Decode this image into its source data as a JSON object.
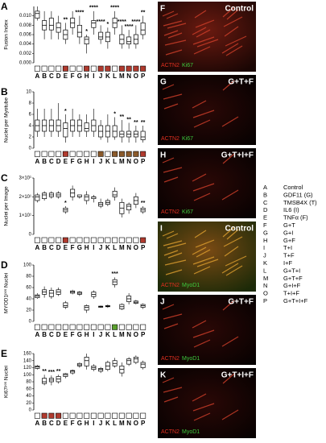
{
  "chart_data": [
    {
      "type": "box",
      "panel_label": "A",
      "ylabel": "Fusion Index",
      "categories": [
        "A",
        "B",
        "C",
        "D",
        "E",
        "F",
        "G",
        "H",
        "I",
        "J",
        "K",
        "L",
        "M",
        "N",
        "O",
        "P"
      ],
      "ylim": [
        0,
        0.012
      ],
      "yticks": [
        {
          "value": 0,
          "label": "0.000"
        },
        {
          "value": 0.002,
          "label": "0.002"
        },
        {
          "value": 0.004,
          "label": "0.004"
        },
        {
          "value": 0.006,
          "label": "0.006"
        },
        {
          "value": 0.008,
          "label": "0.008"
        },
        {
          "value": 0.01,
          "label": "0.010"
        }
      ],
      "boxes": [
        [
          0.009,
          0.0095,
          0.0105,
          0.011,
          0.012
        ],
        [
          0.005,
          0.007,
          0.008,
          0.009,
          0.011
        ],
        [
          0.005,
          0.007,
          0.008,
          0.0095,
          0.011
        ],
        [
          0.005,
          0.0065,
          0.0075,
          0.0085,
          0.01
        ],
        [
          0.004,
          0.005,
          0.006,
          0.007,
          0.0085
        ],
        [
          0.006,
          0.0075,
          0.0085,
          0.0095,
          0.011
        ],
        [
          0.004,
          0.0055,
          0.0065,
          0.008,
          0.01
        ],
        [
          0.002,
          0.004,
          0.005,
          0.0055,
          0.006
        ],
        [
          0.006,
          0.0075,
          0.0085,
          0.009,
          0.011
        ],
        [
          0.004,
          0.005,
          0.0055,
          0.0065,
          0.008
        ],
        [
          0.003,
          0.0045,
          0.0055,
          0.0065,
          0.0075
        ],
        [
          0.006,
          0.0075,
          0.0085,
          0.0095,
          0.011
        ],
        [
          0.003,
          0.004,
          0.005,
          0.006,
          0.008
        ],
        [
          0.003,
          0.004,
          0.0045,
          0.0055,
          0.007
        ],
        [
          0.003,
          0.004,
          0.005,
          0.006,
          0.008
        ],
        [
          0.005,
          0.006,
          0.007,
          0.0085,
          0.01
        ]
      ],
      "annotations": [
        null,
        null,
        null,
        null,
        "**",
        null,
        "****",
        "*",
        "****",
        "****",
        "*",
        "****",
        "****",
        "****",
        "****",
        "**"
      ],
      "marker_colors": [
        "#fff",
        "#fff",
        "#fff",
        "#fff",
        "#b03a2e",
        "#fff",
        "#fff",
        "#b03a2e",
        "#fff",
        "#b03a2e",
        "#b03a2e",
        "#fff",
        "#b03a2e",
        "#b03a2e",
        "#b03a2e",
        "#b03a2e"
      ]
    },
    {
      "type": "box",
      "panel_label": "B",
      "ylabel": "Nuclei per Myotube",
      "categories": [
        "A",
        "B",
        "C",
        "D",
        "E",
        "F",
        "G",
        "H",
        "I",
        "J",
        "K",
        "L",
        "M",
        "N",
        "O",
        "P"
      ],
      "ylim": [
        0,
        10
      ],
      "yticks": [
        0,
        2,
        4,
        6,
        8,
        10
      ],
      "boxes": [
        [
          2,
          3,
          4,
          5,
          7
        ],
        [
          2,
          3,
          4,
          5,
          7
        ],
        [
          2,
          3,
          4,
          5,
          7
        ],
        [
          2,
          3,
          4,
          5,
          8
        ],
        [
          1,
          2,
          3.5,
          4.5,
          6
        ],
        [
          2,
          3,
          4,
          5,
          7
        ],
        [
          2,
          3,
          4,
          5,
          6
        ],
        [
          2,
          3,
          3.5,
          4.5,
          6
        ],
        [
          2,
          3,
          4,
          5,
          7
        ],
        [
          1.5,
          2,
          3,
          4,
          5
        ],
        [
          1,
          2,
          3,
          4,
          6
        ],
        [
          1.5,
          2,
          3,
          4,
          5.5
        ],
        [
          1,
          2,
          2.5,
          3,
          5
        ],
        [
          1,
          2,
          2.5,
          3,
          4.5
        ],
        [
          1,
          2,
          2.5,
          3,
          4
        ],
        [
          1,
          1.5,
          2,
          3,
          4
        ]
      ],
      "annotations": [
        null,
        null,
        null,
        null,
        "*",
        null,
        null,
        null,
        null,
        null,
        null,
        "*",
        "**",
        "**",
        "**",
        "**"
      ],
      "marker_colors": [
        "#fff",
        "#fff",
        "#fff",
        "#fff",
        "#b03a2e",
        "#fff",
        "#fff",
        "#fff",
        "#fff",
        "#8b5a2b",
        "#fff",
        "#8b5a2b",
        "#8b5a2b",
        "#8b5a2b",
        "#8b5a2b",
        "#b03a2e"
      ]
    },
    {
      "type": "box",
      "panel_label": "C",
      "ylabel": "Nuclei per Image",
      "categories": [
        "A",
        "B",
        "C",
        "D",
        "E",
        "F",
        "G",
        "H",
        "I",
        "J",
        "K",
        "L",
        "M",
        "N",
        "O",
        "P"
      ],
      "ylim": [
        0,
        30
      ],
      "yticks": [
        0,
        {
          "value": 10,
          "label": "1×10¹"
        },
        {
          "value": 20,
          "label": "2×10¹"
        },
        {
          "value": 30,
          "label": "3×10¹"
        }
      ],
      "boxes": [
        [
          17,
          18,
          20,
          21,
          22
        ],
        [
          18,
          19,
          21,
          22,
          23
        ],
        [
          19,
          20,
          21,
          22,
          23
        ],
        [
          19,
          20,
          21,
          22,
          23
        ],
        [
          11,
          12,
          13,
          14,
          15
        ],
        [
          18,
          20,
          22,
          24,
          26
        ],
        [
          19,
          20,
          20,
          21,
          21
        ],
        [
          16,
          18,
          20,
          21,
          23
        ],
        [
          17,
          19,
          20,
          20,
          21
        ],
        [
          14,
          15,
          16,
          17,
          19
        ],
        [
          15,
          16,
          17,
          18,
          19
        ],
        [
          18,
          20,
          21,
          23,
          25
        ],
        [
          9,
          11,
          14,
          17,
          19
        ],
        [
          11,
          13,
          15,
          16,
          17
        ],
        [
          14,
          16,
          18,
          20,
          22
        ],
        [
          11,
          12,
          13,
          14,
          15
        ]
      ],
      "annotations": [
        null,
        null,
        null,
        null,
        "*",
        null,
        null,
        null,
        null,
        null,
        null,
        null,
        null,
        null,
        null,
        "**"
      ],
      "marker_colors": [
        "#fff",
        "#fff",
        "#fff",
        "#fff",
        "#b03a2e",
        "#fff",
        "#fff",
        "#fff",
        "#fff",
        "#fff",
        "#fff",
        "#fff",
        "#fff",
        "#fff",
        "#fff",
        "#b03a2e"
      ]
    },
    {
      "type": "box",
      "panel_label": "D",
      "ylabel": "MYOD1ᵖᵒˢ Nuclei",
      "categories": [
        "A",
        "B",
        "C",
        "D",
        "E",
        "F",
        "G",
        "H",
        "I",
        "J",
        "K",
        "L",
        "M",
        "N",
        "O",
        "P"
      ],
      "ylim": [
        0,
        100
      ],
      "yticks": [
        0,
        20,
        40,
        60,
        80,
        100
      ],
      "boxes": [
        [
          40,
          42,
          45,
          47,
          50
        ],
        [
          42,
          48,
          52,
          56,
          62
        ],
        [
          40,
          44,
          50,
          55,
          60
        ],
        [
          45,
          48,
          52,
          56,
          60
        ],
        [
          22,
          25,
          28,
          33,
          36
        ],
        [
          48,
          50,
          52,
          54,
          56
        ],
        [
          45,
          48,
          50,
          52,
          54
        ],
        [
          15,
          20,
          25,
          28,
          30
        ],
        [
          40,
          44,
          48,
          52,
          55
        ],
        [
          24,
          25,
          26,
          27,
          28
        ],
        [
          24,
          26,
          27,
          28,
          30
        ],
        [
          60,
          65,
          70,
          74,
          78
        ],
        [
          20,
          22,
          26,
          30,
          32
        ],
        [
          30,
          35,
          40,
          45,
          50
        ],
        [
          30,
          32,
          34,
          36,
          38
        ],
        [
          22,
          25,
          28,
          30,
          32
        ]
      ],
      "annotations": [
        null,
        null,
        null,
        null,
        null,
        null,
        null,
        null,
        null,
        null,
        null,
        "***",
        null,
        null,
        null,
        null
      ],
      "marker_colors": [
        "#fff",
        "#fff",
        "#fff",
        "#fff",
        "#fff",
        "#fff",
        "#fff",
        "#fff",
        "#fff",
        "#fff",
        "#fff",
        "#5aa02c",
        "#fff",
        "#fff",
        "#fff",
        "#fff"
      ]
    },
    {
      "type": "box",
      "panel_label": "E",
      "ylabel": "Ki67ᵖᵒˢ Nuclei",
      "categories": [
        "A",
        "B",
        "C",
        "D",
        "E",
        "F",
        "G",
        "H",
        "I",
        "J",
        "K",
        "L",
        "M",
        "N",
        "O",
        "P"
      ],
      "ylim": [
        0,
        160
      ],
      "yticks": [
        0,
        20,
        40,
        60,
        80,
        100,
        120,
        140,
        160
      ],
      "boxes": [
        [
          115,
          118,
          122,
          125,
          128
        ],
        [
          70,
          75,
          80,
          90,
          100
        ],
        [
          70,
          80,
          85,
          90,
          98
        ],
        [
          75,
          80,
          88,
          95,
          100
        ],
        [
          90,
          95,
          100,
          103,
          105
        ],
        [
          100,
          105,
          110,
          112,
          115
        ],
        [
          120,
          125,
          128,
          132,
          135
        ],
        [
          115,
          125,
          140,
          150,
          160
        ],
        [
          110,
          115,
          120,
          125,
          130
        ],
        [
          105,
          110,
          115,
          118,
          122
        ],
        [
          110,
          115,
          125,
          135,
          140
        ],
        [
          120,
          125,
          132,
          140,
          148
        ],
        [
          95,
          105,
          115,
          125,
          135
        ],
        [
          125,
          130,
          140,
          145,
          150
        ],
        [
          130,
          135,
          145,
          150,
          155
        ],
        [
          115,
          120,
          130,
          135,
          140
        ]
      ],
      "annotations": [
        null,
        "**",
        "***",
        "**",
        null,
        null,
        null,
        null,
        null,
        null,
        null,
        null,
        null,
        null,
        null,
        null
      ],
      "marker_colors": [
        "#fff",
        "#b03a2e",
        "#b03a2e",
        "#b03a2e",
        "#fff",
        "#fff",
        "#fff",
        "#fff",
        "#fff",
        "#fff",
        "#fff",
        "#fff",
        "#fff",
        "#fff",
        "#fff",
        "#fff"
      ]
    }
  ],
  "micrographs": [
    {
      "label": "F",
      "condition": "Control",
      "stains": [
        "ACTN2",
        "Ki67"
      ]
    },
    {
      "label": "G",
      "condition": "G+T+F",
      "stains": [
        "ACTN2",
        "Ki67"
      ]
    },
    {
      "label": "H",
      "condition": "G+T+I+F",
      "stains": [
        "ACTN2",
        "Ki67"
      ]
    },
    {
      "label": "I",
      "condition": "Control",
      "stains": [
        "ACTN2",
        "MyoD1"
      ]
    },
    {
      "label": "J",
      "condition": "G+T+F",
      "stains": [
        "ACTN2",
        "MyoD1"
      ]
    },
    {
      "label": "K",
      "condition": "G+T+I+F",
      "stains": [
        "ACTN2",
        "MyoD1"
      ]
    }
  ],
  "legend": {
    "rows": [
      [
        "A",
        "Control"
      ],
      [
        "B",
        "GDF11 (G)"
      ],
      [
        "C",
        "TMSB4X (T)"
      ],
      [
        "D",
        "IL6 (I)"
      ],
      [
        "E",
        "TNFα (F)"
      ],
      [
        "F",
        "G+T"
      ],
      [
        "G",
        "G+I"
      ],
      [
        "H",
        "G+F"
      ],
      [
        "I",
        "T+I"
      ],
      [
        "J",
        "T+F"
      ],
      [
        "K",
        "I+F"
      ],
      [
        "L",
        "G+T+I"
      ],
      [
        "M",
        "G+T+F"
      ],
      [
        "N",
        "G+I+F"
      ],
      [
        "O",
        "T+I+F"
      ],
      [
        "P",
        "G+T+I+F"
      ]
    ]
  }
}
